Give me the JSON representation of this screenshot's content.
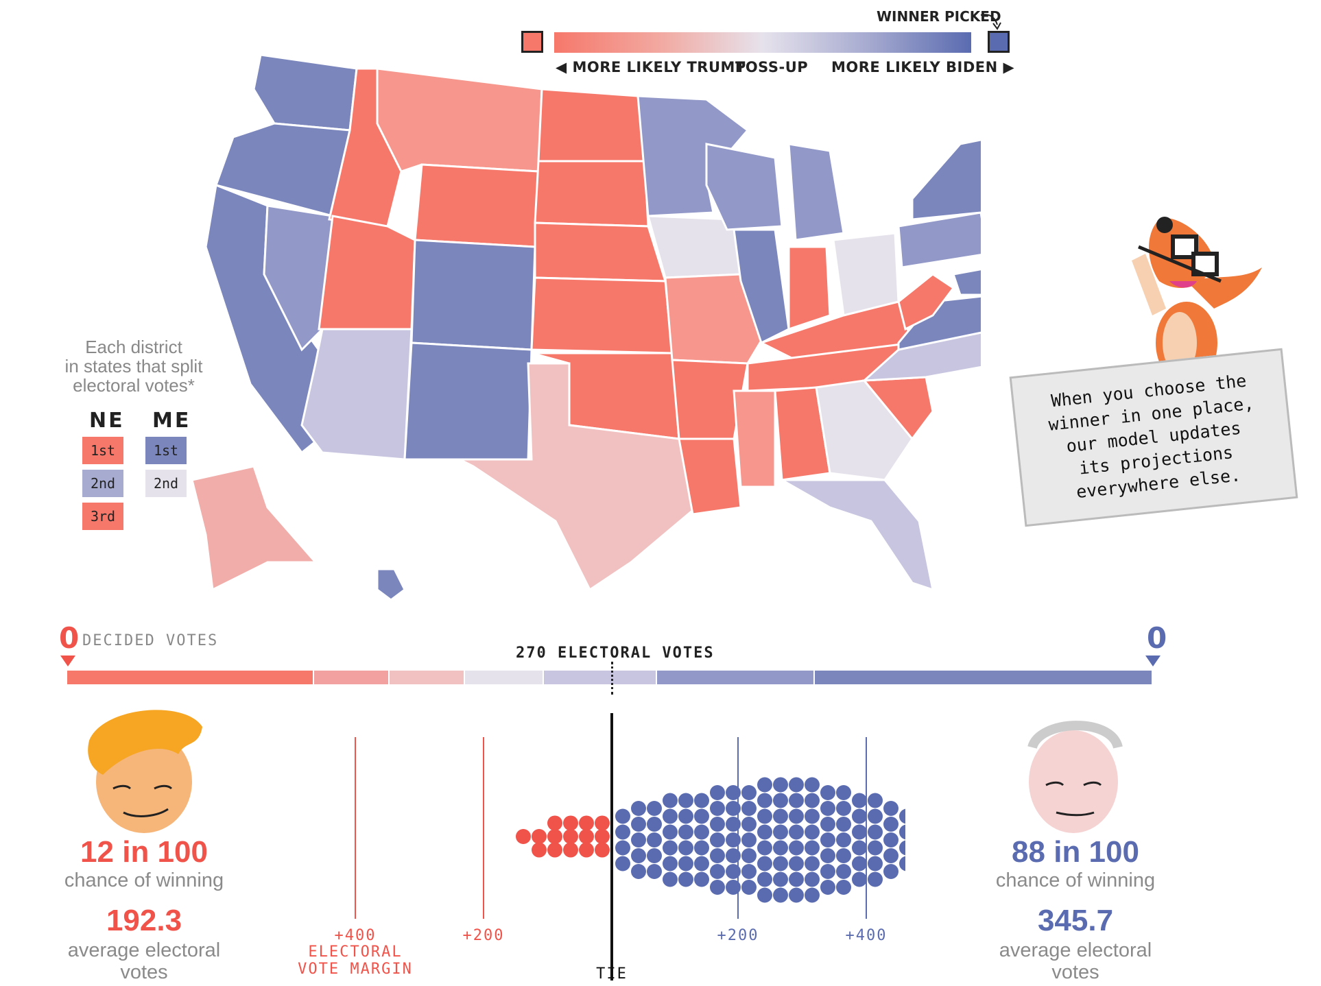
{
  "legend": {
    "winner_picked": "WINNER PICKED",
    "more_likely_trump": "MORE LIKELY TRUMP",
    "toss_up": "TOSS-UP",
    "more_likely_biden": "MORE LIKELY BIDEN",
    "colors": {
      "trump": "#f6786b",
      "biden": "#5a6bb0",
      "tossup": "#e6e2ec"
    }
  },
  "district_legend": {
    "title_line1": "Each district",
    "title_line2": "in states that split",
    "title_line3": "electoral votes*",
    "ne_label": "NE",
    "me_label": "ME",
    "ne": [
      "1st",
      "2nd",
      "3rd"
    ],
    "me": [
      "1st",
      "2nd"
    ]
  },
  "bubble": {
    "line1": "When you choose the",
    "line2": "winner in one place,",
    "line3": "our model updates",
    "line4": "its projections",
    "line5": "everywhere else."
  },
  "decided": {
    "trump_count": "0",
    "label": "DECIDED VOTES",
    "biden_count": "0",
    "threshold": "270 ELECTORAL VOTES"
  },
  "trump": {
    "chance": "12 in 100",
    "chance_label": "chance of winning",
    "avg_ev": "192.3",
    "avg_ev_label_line1": "average electoral",
    "avg_ev_label_line2": "votes"
  },
  "biden": {
    "chance": "88 in 100",
    "chance_label": "chance of winning",
    "avg_ev": "345.7",
    "avg_ev_label_line1": "average electoral",
    "avg_ev_label_line2": "votes"
  },
  "margin_axis": {
    "left_400": "+400",
    "margin_title_line1": "ELECTORAL",
    "margin_title_line2": "VOTE MARGIN",
    "left_200": "+200",
    "tie": "TIE",
    "right_200": "+200",
    "right_400": "+400"
  }
}
